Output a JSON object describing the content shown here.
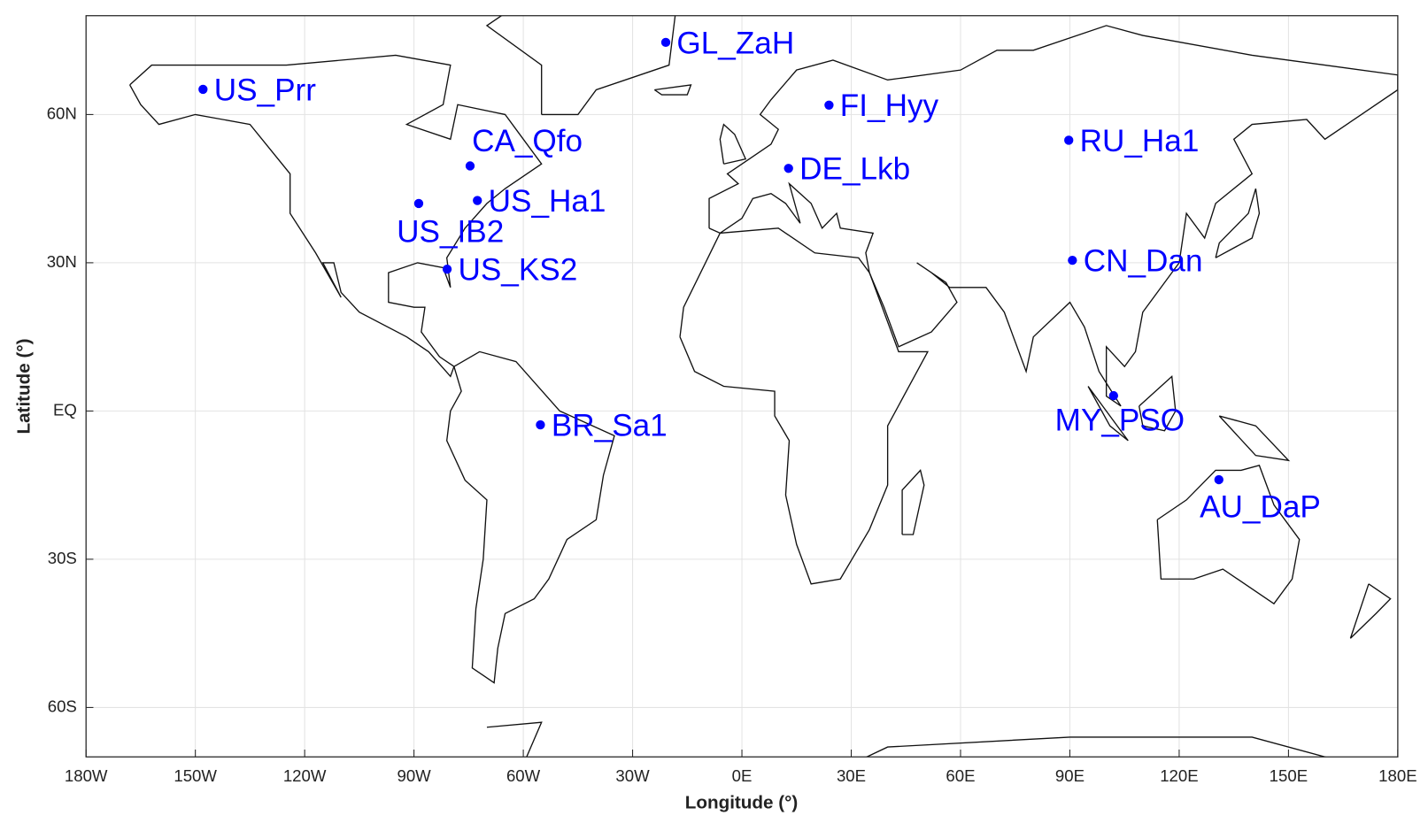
{
  "chart_data": {
    "type": "scatter",
    "xlabel": "Longitude (°)",
    "ylabel": "Latitude (°)",
    "xlim": [
      -180,
      180
    ],
    "ylim": [
      -70,
      80
    ],
    "xticks": [
      {
        "value": -180,
        "label": "180W"
      },
      {
        "value": -150,
        "label": "150W"
      },
      {
        "value": -120,
        "label": "120W"
      },
      {
        "value": -90,
        "label": "90W"
      },
      {
        "value": -60,
        "label": "60W"
      },
      {
        "value": -30,
        "label": "30W"
      },
      {
        "value": 0,
        "label": "0E"
      },
      {
        "value": 30,
        "label": "30E"
      },
      {
        "value": 60,
        "label": "60E"
      },
      {
        "value": 90,
        "label": "90E"
      },
      {
        "value": 120,
        "label": "120E"
      },
      {
        "value": 150,
        "label": "150E"
      },
      {
        "value": 180,
        "label": "180E"
      }
    ],
    "yticks": [
      {
        "value": 60,
        "label": "60N"
      },
      {
        "value": 30,
        "label": "30N"
      },
      {
        "value": 0,
        "label": "EQ"
      },
      {
        "value": -30,
        "label": "30S"
      },
      {
        "value": -60,
        "label": "60S"
      }
    ],
    "grid": true,
    "color": "#0000ff",
    "point_labels": [
      "US_Prr",
      "GL_ZaH",
      "FI_Hyy",
      "CA_Qfo",
      "US_Ha1",
      "US_IB2",
      "US_KS2",
      "DE_Lkb",
      "RU_Ha1",
      "CN_Dan",
      "MY_PSO",
      "AU_DaP",
      "BR_Sa1"
    ],
    "x": [
      -147.9,
      -20.9,
      23.9,
      -74.6,
      -72.6,
      -88.7,
      -80.9,
      12.8,
      89.7,
      90.7,
      102.0,
      130.9,
      -55.3
    ],
    "values": [
      65.1,
      74.6,
      61.9,
      49.6,
      42.6,
      42.0,
      28.7,
      49.1,
      54.8,
      30.5,
      3.1,
      -13.9,
      -2.8
    ]
  }
}
